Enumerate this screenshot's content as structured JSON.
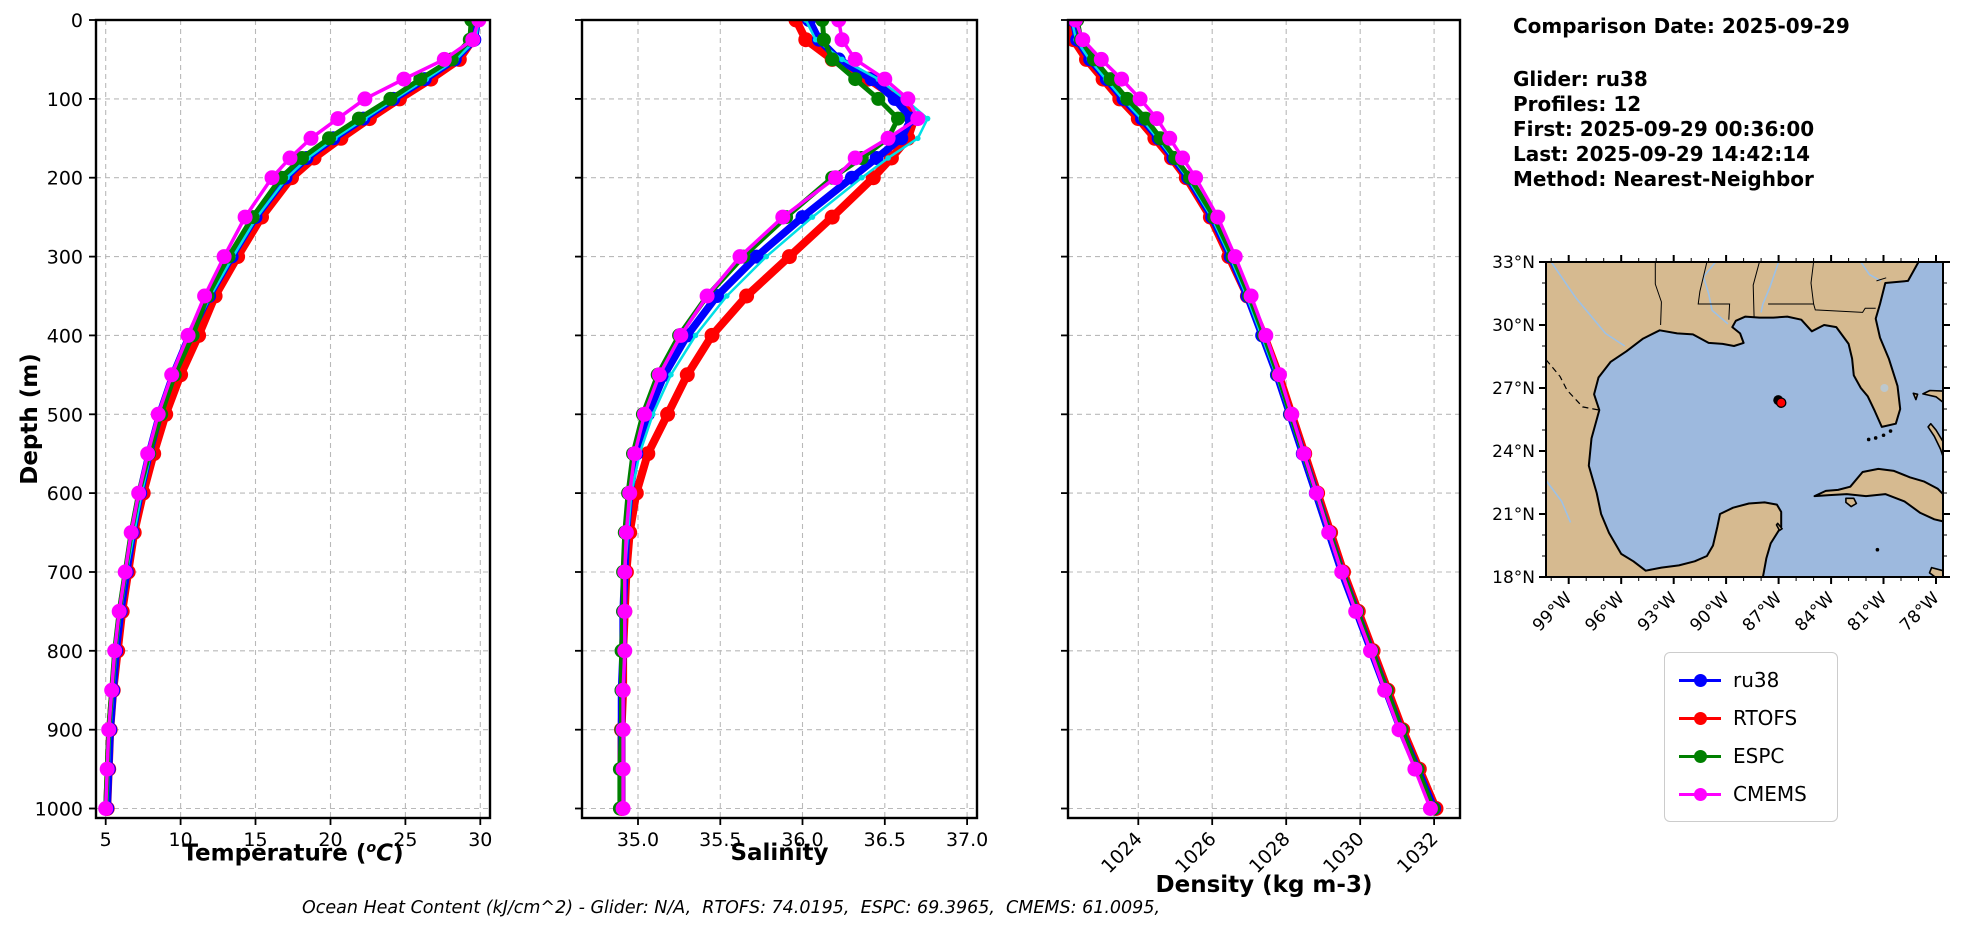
{
  "info_panel": {
    "date_line": "Comparison Date: 2025-09-29",
    "glider_line": "Glider: ru38",
    "profiles_line": "Profiles: 12",
    "first_line": "First: 2025-09-29 00:36:00",
    "last_line": "Last: 2025-09-29 14:42:14",
    "method_line": "Method: Nearest-Neighbor"
  },
  "labels": {
    "depth_axis": "Depth (m)",
    "temp_prefix": "Temperature (",
    "temp_sup": "o",
    "temp_var": "C",
    "temp_suffix": ")",
    "salinity_axis": "Salinity",
    "density_axis": "Density (kg m-3)"
  },
  "footer": {
    "ohc_line": "Ocean Heat Content (kJ/cm^2) - Glider: N/A,  RTOFS: 74.0195,  ESPC: 69.3965,  CMEMS: 61.0095,"
  },
  "legend": {
    "items": [
      {
        "label": "ru38",
        "color": "#0000ff"
      },
      {
        "label": "RTOFS",
        "color": "#ff0000"
      },
      {
        "label": "ESPC",
        "color": "#008000"
      },
      {
        "label": "CMEMS",
        "color": "#ff00ff"
      }
    ]
  },
  "map": {
    "lat_tick_labels": [
      "33°N",
      "30°N",
      "27°N",
      "24°N",
      "21°N",
      "18°N"
    ],
    "lat_tick_values": [
      33,
      30,
      27,
      24,
      21,
      18
    ],
    "lon_tick_labels": [
      "99°W",
      "96°W",
      "93°W",
      "90°W",
      "87°W",
      "84°W",
      "81°W",
      "78°W"
    ],
    "lon_tick_values": [
      -99,
      -96,
      -93,
      -90,
      -87,
      -84,
      -81,
      -78
    ],
    "extent": {
      "lon_min": -100.3,
      "lon_max": -77.6,
      "lat_min": 18,
      "lat_max": 33
    },
    "colors": {
      "ocean": "#9db9de",
      "land": "#d6ba90",
      "coast": "#000000",
      "river": "#9dc1e6",
      "lake": "#bcc8ce"
    },
    "glider_marker": {
      "lon": -86.85,
      "lat": 26.3,
      "fill": "#ff0000",
      "edge": "#000000"
    }
  },
  "chart_data": [
    {
      "id": "temperature",
      "type": "line",
      "profile_orientation": "depth-vertical",
      "title": "",
      "xlabel": "Temperature (°C)",
      "ylabel": "Depth (m)",
      "xlim": [
        4.35,
        30.65
      ],
      "ylim": [
        1012,
        0
      ],
      "grid": true,
      "xticks": [
        5,
        10,
        15,
        20,
        25,
        30
      ],
      "xtick_labels": [
        "5",
        "10",
        "15",
        "20",
        "25",
        "30"
      ],
      "yticks": [
        0,
        100,
        200,
        300,
        400,
        500,
        600,
        700,
        800,
        900,
        1000
      ],
      "depths": [
        0,
        25,
        50,
        75,
        100,
        125,
        150,
        175,
        200,
        250,
        300,
        350,
        400,
        450,
        500,
        550,
        600,
        650,
        700,
        750,
        800,
        850,
        900,
        950,
        1000
      ],
      "series": [
        {
          "name": "ru38",
          "color": "#0000ff",
          "z": 2,
          "line_width": 7.5,
          "marker_radius": 7,
          "in_legend": true,
          "values": [
            29.8,
            29.6,
            28.3,
            26.3,
            24.2,
            22.2,
            20.2,
            18.4,
            17.0,
            15.0,
            13.4,
            11.9,
            10.6,
            9.5,
            8.6,
            7.9,
            7.3,
            6.8,
            6.4,
            6.0,
            5.7,
            5.5,
            5.3,
            5.2,
            5.1
          ]
        },
        {
          "name": "RTOFS",
          "color": "#ff0000",
          "z": 1,
          "line_width": 8,
          "marker_radius": 7.5,
          "in_legend": true,
          "values": [
            29.7,
            29.5,
            28.6,
            26.7,
            24.6,
            22.6,
            20.7,
            18.9,
            17.4,
            15.4,
            13.8,
            12.3,
            11.2,
            10.0,
            9.0,
            8.2,
            7.5,
            6.9,
            6.5,
            6.1,
            5.8,
            5.5,
            5.3,
            5.2,
            5.1
          ]
        },
        {
          "name": "ESPC",
          "color": "#008000",
          "z": 4,
          "line_width": 5,
          "marker_radius": 7,
          "in_legend": true,
          "values": [
            29.4,
            29.3,
            28.1,
            26.0,
            24.0,
            21.9,
            19.9,
            18.1,
            16.7,
            14.8,
            13.2,
            11.8,
            10.8,
            9.6,
            8.7,
            7.9,
            7.2,
            6.7,
            6.3,
            5.9,
            5.6,
            5.4,
            5.2,
            5.1,
            5.0
          ]
        },
        {
          "name": "CMEMS",
          "color": "#ff00ff",
          "z": 5,
          "line_width": 3.5,
          "marker_radius": 7.5,
          "in_legend": true,
          "values": [
            29.9,
            29.5,
            27.6,
            24.9,
            22.3,
            20.5,
            18.7,
            17.3,
            16.1,
            14.3,
            12.9,
            11.6,
            10.5,
            9.4,
            8.5,
            7.8,
            7.2,
            6.7,
            6.3,
            5.9,
            5.6,
            5.4,
            5.2,
            5.1,
            5.0
          ]
        },
        {
          "name": "(unlabeled cyan trace)",
          "color": "#00dfe6",
          "z": 3,
          "line_width": 2.5,
          "marker_radius": 2.8,
          "in_legend": false,
          "values": [
            29.9,
            29.7,
            28.4,
            26.4,
            24.3,
            22.3,
            20.3,
            18.5,
            17.1,
            15.1,
            13.5,
            12.0,
            10.7,
            9.6,
            8.7,
            8.0,
            7.4,
            6.9,
            6.4,
            6.0,
            5.7,
            5.5,
            5.3,
            5.2,
            5.1
          ]
        }
      ]
    },
    {
      "id": "salinity",
      "type": "line",
      "profile_orientation": "depth-vertical",
      "title": "",
      "xlabel": "Salinity",
      "ylabel": "Depth (m)",
      "xlim": [
        34.66,
        37.06
      ],
      "ylim": [
        1012,
        0
      ],
      "grid": true,
      "xticks": [
        35.0,
        35.5,
        36.0,
        36.5,
        37.0
      ],
      "xtick_labels": [
        "35.0",
        "35.5",
        "36.0",
        "36.5",
        "37.0"
      ],
      "yticks": [
        0,
        100,
        200,
        300,
        400,
        500,
        600,
        700,
        800,
        900,
        1000
      ],
      "depths": [
        0,
        25,
        50,
        75,
        100,
        125,
        150,
        175,
        200,
        250,
        300,
        350,
        400,
        450,
        500,
        550,
        600,
        650,
        700,
        750,
        800,
        850,
        900,
        950,
        1000
      ],
      "series": [
        {
          "name": "ru38",
          "color": "#0000ff",
          "z": 2,
          "line_width": 7.5,
          "marker_radius": 7,
          "in_legend": true,
          "values": [
            36.04,
            36.1,
            36.22,
            36.42,
            36.56,
            36.66,
            36.6,
            36.45,
            36.3,
            36.0,
            35.72,
            35.48,
            35.3,
            35.16,
            35.06,
            34.99,
            34.95,
            34.93,
            34.92,
            34.91,
            34.91,
            34.9,
            34.9,
            34.9,
            34.9
          ]
        },
        {
          "name": "RTOFS",
          "color": "#ff0000",
          "z": 1,
          "line_width": 8,
          "marker_radius": 7.5,
          "in_legend": true,
          "values": [
            35.96,
            36.02,
            36.18,
            36.4,
            36.58,
            36.68,
            36.64,
            36.54,
            36.43,
            36.18,
            35.92,
            35.66,
            35.45,
            35.3,
            35.18,
            35.06,
            34.99,
            34.95,
            34.93,
            34.92,
            34.91,
            34.91,
            34.9,
            34.9,
            34.9
          ]
        },
        {
          "name": "ESPC",
          "color": "#008000",
          "z": 4,
          "line_width": 5,
          "marker_radius": 7,
          "in_legend": true,
          "values": [
            36.12,
            36.13,
            36.18,
            36.32,
            36.46,
            36.58,
            36.52,
            36.36,
            36.18,
            35.9,
            35.64,
            35.42,
            35.25,
            35.12,
            35.03,
            34.97,
            34.94,
            34.92,
            34.91,
            34.91,
            34.9,
            34.9,
            34.9,
            34.89,
            34.89
          ]
        },
        {
          "name": "CMEMS",
          "color": "#ff00ff",
          "z": 5,
          "line_width": 3.5,
          "marker_radius": 7.5,
          "in_legend": true,
          "values": [
            36.22,
            36.24,
            36.32,
            36.5,
            36.64,
            36.7,
            36.52,
            36.32,
            36.2,
            35.88,
            35.62,
            35.42,
            35.26,
            35.13,
            35.04,
            34.98,
            34.95,
            34.93,
            34.92,
            34.92,
            34.92,
            34.91,
            34.91,
            34.91,
            34.91
          ]
        },
        {
          "name": "(unlabeled cyan trace)",
          "color": "#00dfe6",
          "z": 3,
          "line_width": 2.5,
          "marker_radius": 2.8,
          "in_legend": false,
          "values": [
            36.02,
            36.08,
            36.24,
            36.46,
            36.62,
            36.76,
            36.7,
            36.52,
            36.36,
            36.06,
            35.78,
            35.54,
            35.35,
            35.2,
            35.09,
            35.01,
            34.96,
            34.94,
            34.92,
            34.92,
            34.91,
            34.91,
            34.9,
            34.9,
            34.9
          ]
        }
      ]
    },
    {
      "id": "density",
      "type": "line",
      "profile_orientation": "depth-vertical",
      "title": "",
      "xlabel": "Density (kg m-3)",
      "ylabel": "Depth (m)",
      "xlim": [
        1022.1,
        1032.7
      ],
      "ylim": [
        1012,
        0
      ],
      "grid": true,
      "xticks": [
        1024,
        1026,
        1028,
        1030,
        1032
      ],
      "xtick_labels": [
        "1024",
        "1026",
        "1028",
        "1030",
        "1032"
      ],
      "xtick_rotation": 45,
      "yticks": [
        0,
        100,
        200,
        300,
        400,
        500,
        600,
        700,
        800,
        900,
        1000
      ],
      "depths": [
        0,
        25,
        50,
        75,
        100,
        125,
        150,
        175,
        200,
        250,
        300,
        350,
        400,
        450,
        500,
        550,
        600,
        650,
        700,
        750,
        800,
        850,
        900,
        950,
        1000
      ],
      "series": [
        {
          "name": "ru38",
          "color": "#0000ff",
          "z": 2,
          "line_width": 7.5,
          "marker_radius": 7,
          "in_legend": true,
          "values": [
            1022.25,
            1022.35,
            1022.7,
            1023.15,
            1023.6,
            1024.1,
            1024.55,
            1024.95,
            1025.35,
            1026.0,
            1026.5,
            1026.95,
            1027.35,
            1027.75,
            1028.1,
            1028.45,
            1028.8,
            1029.15,
            1029.5,
            1029.9,
            1030.3,
            1030.7,
            1031.1,
            1031.55,
            1032.0
          ]
        },
        {
          "name": "RTOFS",
          "color": "#ff0000",
          "z": 1,
          "line_width": 8,
          "marker_radius": 7.5,
          "in_legend": true,
          "values": [
            1022.15,
            1022.25,
            1022.6,
            1023.05,
            1023.5,
            1024.0,
            1024.45,
            1024.9,
            1025.3,
            1025.95,
            1026.45,
            1026.95,
            1027.4,
            1027.8,
            1028.15,
            1028.5,
            1028.85,
            1029.2,
            1029.55,
            1029.95,
            1030.35,
            1030.75,
            1031.15,
            1031.6,
            1032.05
          ]
        },
        {
          "name": "ESPC",
          "color": "#008000",
          "z": 4,
          "line_width": 5,
          "marker_radius": 7,
          "in_legend": true,
          "values": [
            1022.35,
            1022.45,
            1022.8,
            1023.25,
            1023.7,
            1024.2,
            1024.6,
            1025.0,
            1025.4,
            1026.05,
            1026.55,
            1027.0,
            1027.4,
            1027.78,
            1028.12,
            1028.47,
            1028.82,
            1029.17,
            1029.52,
            1029.92,
            1030.32,
            1030.72,
            1031.12,
            1031.55,
            1031.98
          ]
        },
        {
          "name": "CMEMS",
          "color": "#ff00ff",
          "z": 5,
          "line_width": 3.5,
          "marker_radius": 7.5,
          "in_legend": true,
          "values": [
            1022.3,
            1022.5,
            1023.0,
            1023.55,
            1024.05,
            1024.5,
            1024.85,
            1025.2,
            1025.55,
            1026.15,
            1026.62,
            1027.05,
            1027.45,
            1027.82,
            1028.15,
            1028.48,
            1028.82,
            1029.15,
            1029.5,
            1029.88,
            1030.28,
            1030.66,
            1031.05,
            1031.48,
            1031.9
          ]
        },
        {
          "name": "(unlabeled cyan trace)",
          "color": "#00dfe6",
          "z": 3,
          "line_width": 2.5,
          "marker_radius": 2.8,
          "in_legend": false,
          "values": [
            1022.2,
            1022.32,
            1022.68,
            1023.12,
            1023.58,
            1024.08,
            1024.52,
            1024.93,
            1025.33,
            1025.98,
            1026.48,
            1026.93,
            1027.33,
            1027.73,
            1028.08,
            1028.43,
            1028.78,
            1029.13,
            1029.48,
            1029.88,
            1030.28,
            1030.68,
            1031.08,
            1031.52,
            1031.97
          ]
        }
      ]
    }
  ]
}
